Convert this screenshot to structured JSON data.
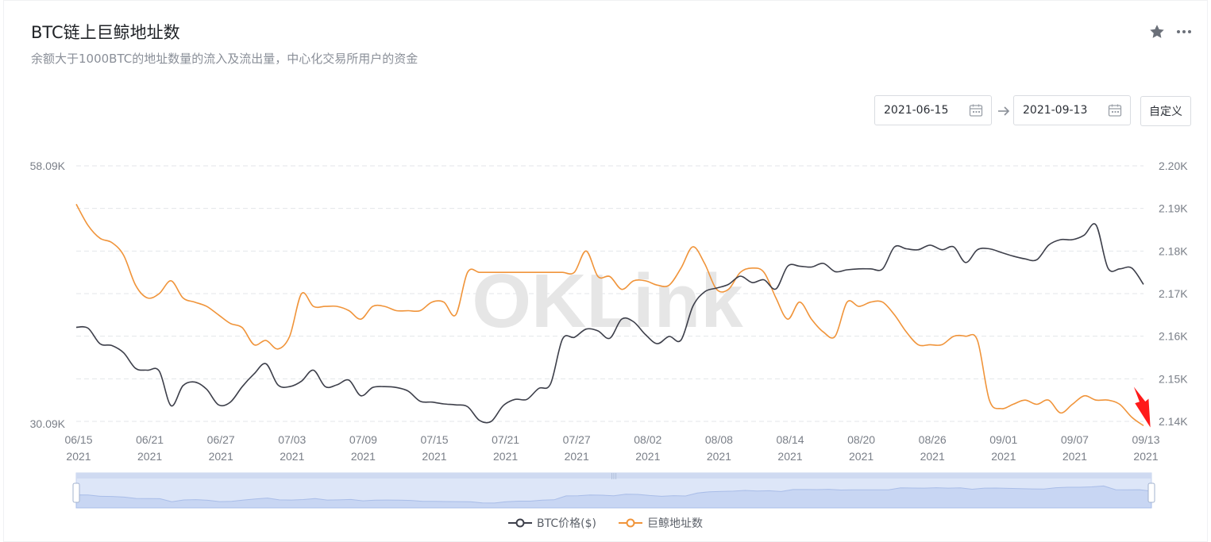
{
  "header": {
    "title": "BTC链上巨鲸地址数",
    "subtitle": "余额大于1000BTC的地址数量的流入及流出量，中心化交易所用户的资金"
  },
  "controls": {
    "start_date": "2021-06-15",
    "end_date": "2021-09-13",
    "custom_label": "自定义"
  },
  "watermark": "OKLink",
  "legend": {
    "series1": "BTC价格($)",
    "series2": "巨鲸地址数"
  },
  "colors": {
    "price": "#3d3f4a",
    "whales": "#f0943a",
    "grid": "#e3e6ea",
    "slider_fill": "#dde6f8",
    "arrow": "#ff1a1a"
  },
  "chart_data": {
    "type": "line",
    "x_tick_labels": [
      [
        "06/15",
        "2021"
      ],
      [
        "06/21",
        "2021"
      ],
      [
        "06/27",
        "2021"
      ],
      [
        "07/03",
        "2021"
      ],
      [
        "07/09",
        "2021"
      ],
      [
        "07/15",
        "2021"
      ],
      [
        "07/21",
        "2021"
      ],
      [
        "07/27",
        "2021"
      ],
      [
        "08/02",
        "2021"
      ],
      [
        "08/08",
        "2021"
      ],
      [
        "08/14",
        "2021"
      ],
      [
        "08/20",
        "2021"
      ],
      [
        "08/26",
        "2021"
      ],
      [
        "09/01",
        "2021"
      ],
      [
        "09/07",
        "2021"
      ],
      [
        "09/13",
        "2021"
      ]
    ],
    "left_axis": {
      "ticks": [
        "58.09K",
        "30.09K"
      ],
      "range": [
        30090,
        58090
      ]
    },
    "right_axis": {
      "ticks": [
        "2.20K",
        "2.19K",
        "2.18K",
        "2.17K",
        "2.16K",
        "2.15K",
        "2.14K"
      ],
      "range": [
        2140,
        2200
      ]
    },
    "grid": true,
    "legend_position": "bottom",
    "series": [
      {
        "name": "BTC价格($)",
        "axis": "left",
        "values": [
          [
            0,
            40400
          ],
          [
            1,
            40300
          ],
          [
            2,
            38600
          ],
          [
            3,
            38400
          ],
          [
            4,
            37600
          ],
          [
            5,
            35900
          ],
          [
            6,
            35700
          ],
          [
            7,
            35600
          ],
          [
            8,
            31800
          ],
          [
            9,
            34000
          ],
          [
            10,
            34400
          ],
          [
            11,
            33600
          ],
          [
            12,
            31900
          ],
          [
            13,
            32200
          ],
          [
            14,
            33900
          ],
          [
            15,
            35300
          ],
          [
            16,
            36400
          ],
          [
            17,
            34100
          ],
          [
            18,
            33900
          ],
          [
            19,
            34500
          ],
          [
            20,
            35700
          ],
          [
            21,
            33900
          ],
          [
            22,
            34100
          ],
          [
            23,
            34600
          ],
          [
            24,
            32900
          ],
          [
            25,
            33800
          ],
          [
            26,
            33900
          ],
          [
            27,
            33800
          ],
          [
            28,
            33400
          ],
          [
            29,
            32300
          ],
          [
            30,
            32200
          ],
          [
            31,
            32000
          ],
          [
            32,
            31900
          ],
          [
            33,
            31700
          ],
          [
            34,
            30200
          ],
          [
            35,
            30100
          ],
          [
            36,
            31800
          ],
          [
            37,
            32500
          ],
          [
            38,
            32500
          ],
          [
            39,
            33700
          ],
          [
            40,
            34200
          ],
          [
            41,
            39100
          ],
          [
            42,
            39300
          ],
          [
            43,
            40200
          ],
          [
            44,
            40000
          ],
          [
            45,
            39200
          ],
          [
            46,
            41300
          ],
          [
            47,
            41000
          ],
          [
            48,
            39600
          ],
          [
            49,
            38600
          ],
          [
            50,
            39400
          ],
          [
            51,
            39000
          ],
          [
            52,
            42700
          ],
          [
            53,
            44300
          ],
          [
            54,
            44700
          ],
          [
            55,
            45100
          ],
          [
            56,
            46000
          ],
          [
            57,
            45300
          ],
          [
            58,
            45600
          ],
          [
            59,
            44600
          ],
          [
            60,
            47100
          ],
          [
            61,
            47100
          ],
          [
            62,
            47000
          ],
          [
            63,
            47400
          ],
          [
            64,
            46500
          ],
          [
            65,
            46700
          ],
          [
            66,
            46800
          ],
          [
            67,
            46800
          ],
          [
            68,
            46800
          ],
          [
            69,
            49200
          ],
          [
            70,
            49000
          ],
          [
            71,
            48900
          ],
          [
            72,
            49400
          ],
          [
            73,
            48900
          ],
          [
            74,
            49200
          ],
          [
            75,
            47500
          ],
          [
            76,
            48900
          ],
          [
            77,
            49000
          ],
          [
            78,
            48600
          ],
          [
            79,
            48200
          ],
          [
            80,
            47900
          ],
          [
            81,
            47800
          ],
          [
            82,
            49400
          ],
          [
            83,
            50000
          ],
          [
            84,
            50000
          ],
          [
            85,
            50500
          ],
          [
            86,
            51600
          ],
          [
            87,
            46900
          ],
          [
            88,
            46800
          ],
          [
            89,
            46900
          ],
          [
            90,
            45100
          ]
        ]
      },
      {
        "name": "巨鲸地址数",
        "axis": "right",
        "values": [
          [
            0,
            2191
          ],
          [
            1,
            2186
          ],
          [
            2,
            2183
          ],
          [
            3,
            2182
          ],
          [
            4,
            2179
          ],
          [
            5,
            2172
          ],
          [
            6,
            2169
          ],
          [
            7,
            2170
          ],
          [
            8,
            2173
          ],
          [
            9,
            2169
          ],
          [
            10,
            2168
          ],
          [
            11,
            2167
          ],
          [
            12,
            2165
          ],
          [
            13,
            2163
          ],
          [
            14,
            2162
          ],
          [
            15,
            2158
          ],
          [
            16,
            2159
          ],
          [
            17,
            2157
          ],
          [
            18,
            2160
          ],
          [
            19,
            2170
          ],
          [
            20,
            2167
          ],
          [
            21,
            2167
          ],
          [
            22,
            2167
          ],
          [
            23,
            2166
          ],
          [
            24,
            2164
          ],
          [
            25,
            2167
          ],
          [
            26,
            2167
          ],
          [
            27,
            2166
          ],
          [
            28,
            2166
          ],
          [
            29,
            2166
          ],
          [
            30,
            2168
          ],
          [
            31,
            2168
          ],
          [
            32,
            2165
          ],
          [
            33,
            2175
          ],
          [
            34,
            2175
          ],
          [
            35,
            2175
          ],
          [
            36,
            2175
          ],
          [
            37,
            2175
          ],
          [
            38,
            2175
          ],
          [
            39,
            2175
          ],
          [
            40,
            2175
          ],
          [
            41,
            2175
          ],
          [
            42,
            2175
          ],
          [
            43,
            2180
          ],
          [
            44,
            2174
          ],
          [
            45,
            2174
          ],
          [
            46,
            2171
          ],
          [
            47,
            2173
          ],
          [
            48,
            2173
          ],
          [
            49,
            2172
          ],
          [
            50,
            2172
          ],
          [
            51,
            2176
          ],
          [
            52,
            2181
          ],
          [
            53,
            2177
          ],
          [
            54,
            2171
          ],
          [
            55,
            2171
          ],
          [
            56,
            2175
          ],
          [
            57,
            2176
          ],
          [
            58,
            2175
          ],
          [
            59,
            2169
          ],
          [
            60,
            2164
          ],
          [
            61,
            2168
          ],
          [
            62,
            2164
          ],
          [
            63,
            2161
          ],
          [
            64,
            2160
          ],
          [
            65,
            2168
          ],
          [
            66,
            2167
          ],
          [
            67,
            2168
          ],
          [
            68,
            2168
          ],
          [
            69,
            2165
          ],
          [
            70,
            2161
          ],
          [
            71,
            2158
          ],
          [
            72,
            2158
          ],
          [
            73,
            2158
          ],
          [
            74,
            2160
          ],
          [
            75,
            2160
          ],
          [
            76,
            2159
          ],
          [
            77,
            2145
          ],
          [
            78,
            2143
          ],
          [
            79,
            2144
          ],
          [
            80,
            2145
          ],
          [
            81,
            2144
          ],
          [
            82,
            2145
          ],
          [
            83,
            2142
          ],
          [
            84,
            2144
          ],
          [
            85,
            2146
          ],
          [
            86,
            2145
          ],
          [
            87,
            2145
          ],
          [
            88,
            2144
          ],
          [
            89,
            2141
          ],
          [
            90,
            2139
          ]
        ]
      }
    ]
  }
}
